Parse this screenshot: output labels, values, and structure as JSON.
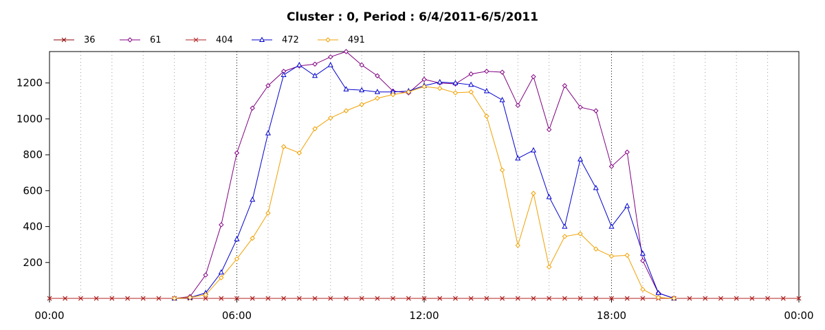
{
  "chart_data": {
    "type": "line",
    "title": "Cluster : 0, Period : 6/4/2011-6/5/2011",
    "xlabel": "",
    "ylabel": "",
    "xlim": [
      0,
      24
    ],
    "ylim": [
      0,
      1375
    ],
    "x_ticks": [
      {
        "value": 0,
        "label": "00:00"
      },
      {
        "value": 6,
        "label": "06:00"
      },
      {
        "value": 12,
        "label": "12:00"
      },
      {
        "value": 18,
        "label": "18:00"
      },
      {
        "value": 24,
        "label": "00:00"
      }
    ],
    "y_ticks": [
      {
        "value": 200,
        "label": "200"
      },
      {
        "value": 400,
        "label": "400"
      },
      {
        "value": 600,
        "label": "600"
      },
      {
        "value": 800,
        "label": "800"
      },
      {
        "value": 1000,
        "label": "1000"
      },
      {
        "value": 1200,
        "label": "1200"
      }
    ],
    "grid": "vertical dotted",
    "legend_position": "top-left",
    "x": [
      "00:00",
      "00:30",
      "01:00",
      "01:30",
      "02:00",
      "02:30",
      "03:00",
      "03:30",
      "04:00",
      "04:30",
      "05:00",
      "05:30",
      "06:00",
      "06:30",
      "07:00",
      "07:30",
      "08:00",
      "08:30",
      "09:00",
      "09:30",
      "10:00",
      "10:30",
      "11:00",
      "11:30",
      "12:00",
      "12:30",
      "13:00",
      "13:30",
      "14:00",
      "14:30",
      "15:00",
      "15:30",
      "16:00",
      "16:30",
      "17:00",
      "17:30",
      "18:00",
      "18:30",
      "19:00",
      "19:30",
      "20:00",
      "20:30",
      "21:00",
      "21:30",
      "22:00",
      "22:30",
      "23:00",
      "23:30",
      "24:00"
    ],
    "series": [
      {
        "name": "36",
        "color": "#8b0000",
        "marker": "x",
        "values": [
          0,
          0,
          0,
          0,
          0,
          0,
          0,
          0,
          0,
          0,
          0,
          0,
          0,
          0,
          0,
          0,
          0,
          0,
          0,
          0,
          0,
          0,
          0,
          0,
          0,
          0,
          0,
          0,
          0,
          0,
          0,
          0,
          0,
          0,
          0,
          0,
          0,
          0,
          0,
          0,
          0,
          0,
          0,
          0,
          0,
          0,
          0,
          0,
          0
        ]
      },
      {
        "name": "61",
        "color": "#800080",
        "marker": "diamond",
        "values": [
          null,
          null,
          null,
          null,
          null,
          null,
          null,
          null,
          0,
          10,
          130,
          410,
          810,
          1060,
          1185,
          1265,
          1295,
          1305,
          1345,
          1375,
          1300,
          1240,
          1155,
          1145,
          1220,
          1200,
          1195,
          1250,
          1265,
          1260,
          1075,
          1235,
          940,
          1185,
          1065,
          1045,
          735,
          815,
          210,
          30,
          0,
          null,
          null,
          null,
          null,
          null,
          null,
          null,
          null
        ]
      },
      {
        "name": "404",
        "color": "#b22222",
        "marker": "x",
        "values": [
          0,
          0,
          0,
          0,
          0,
          0,
          0,
          0,
          0,
          0,
          0,
          0,
          0,
          0,
          0,
          0,
          0,
          0,
          0,
          0,
          0,
          0,
          0,
          0,
          0,
          0,
          0,
          0,
          0,
          0,
          0,
          0,
          0,
          0,
          0,
          0,
          0,
          0,
          0,
          0,
          0,
          0,
          0,
          0,
          0,
          0,
          0,
          0,
          0
        ]
      },
      {
        "name": "472",
        "color": "#0000cd",
        "marker": "triangle",
        "values": [
          null,
          null,
          null,
          null,
          null,
          null,
          null,
          null,
          0,
          5,
          30,
          145,
          330,
          550,
          920,
          1245,
          1300,
          1240,
          1300,
          1165,
          1160,
          1150,
          1150,
          1155,
          1185,
          1205,
          1200,
          1190,
          1155,
          1105,
          780,
          825,
          565,
          400,
          775,
          615,
          400,
          515,
          250,
          30,
          0,
          null,
          null,
          null,
          null,
          null,
          null,
          null,
          null
        ]
      },
      {
        "name": "491",
        "color": "#f0a000",
        "marker": "diamond",
        "values": [
          null,
          null,
          null,
          null,
          null,
          null,
          null,
          null,
          0,
          5,
          20,
          115,
          220,
          335,
          475,
          845,
          810,
          945,
          1005,
          1045,
          1080,
          1115,
          1135,
          1150,
          1180,
          1170,
          1145,
          1150,
          1015,
          715,
          295,
          585,
          175,
          345,
          360,
          275,
          235,
          240,
          50,
          5,
          0,
          null,
          null,
          null,
          null,
          null,
          null,
          null,
          null
        ]
      }
    ]
  }
}
